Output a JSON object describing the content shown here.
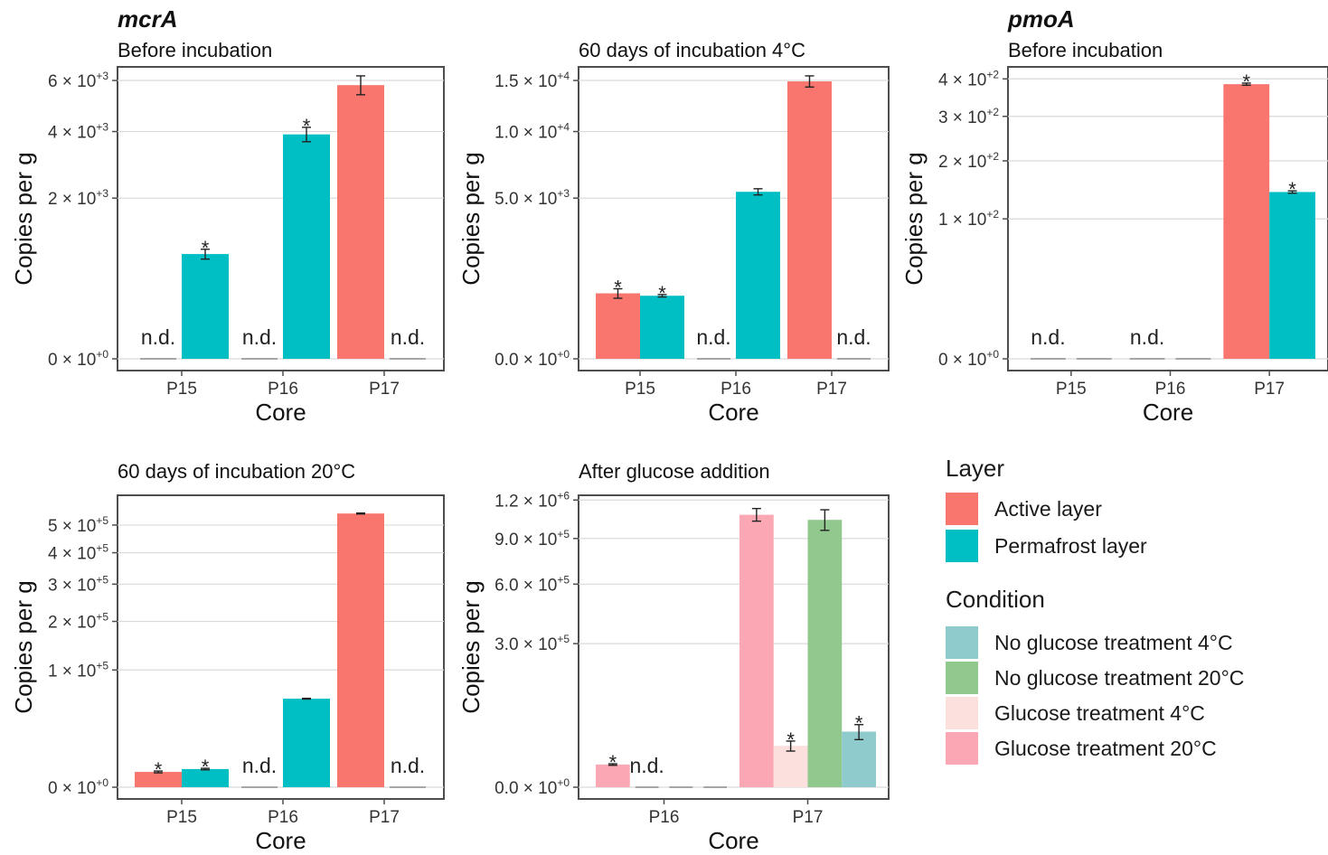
{
  "chart_data": [
    {
      "type": "bar",
      "gene": "mcrA",
      "title": "Before incubation",
      "xlabel": "Core",
      "ylabel": "Copies per g",
      "y_scale": "sqrt",
      "ylim": [
        0,
        0.0066
      ],
      "yticks": [
        {
          "value": 0,
          "mant": "0",
          "exp": "+0"
        },
        {
          "value": 0.002,
          "mant": "2",
          "exp": "+3"
        },
        {
          "value": 0.004,
          "mant": "4",
          "exp": "+3"
        },
        {
          "value": 0.006,
          "mant": "6",
          "exp": "+3"
        }
      ],
      "categories": [
        "P15",
        "P16",
        "P17"
      ],
      "bars": [
        {
          "core": "P15",
          "layer": "Active layer",
          "value": 0,
          "nd": true,
          "nd_label": "n.d."
        },
        {
          "core": "P15",
          "layer": "Permafrost layer",
          "value": 0.00085,
          "err": 8e-05,
          "star": "*"
        },
        {
          "core": "P16",
          "layer": "Active layer",
          "value": 0,
          "nd": true,
          "nd_label": "n.d."
        },
        {
          "core": "P16",
          "layer": "Permafrost layer",
          "value": 0.0039,
          "err": 0.00025,
          "star": "*"
        },
        {
          "core": "P17",
          "layer": "Active layer",
          "value": 0.0058,
          "err": 0.0004
        },
        {
          "core": "P17",
          "layer": "Permafrost layer",
          "value": 0,
          "nd": true,
          "nd_label": "n.d."
        }
      ]
    },
    {
      "type": "bar",
      "gene": "",
      "title": "60 days of incubation 4°C",
      "xlabel": "Core",
      "ylabel": "Copies per g",
      "y_scale": "sqrt",
      "ylim": [
        0,
        0.000165
      ],
      "yticks": [
        {
          "value": 0,
          "mant": "0.0",
          "exp": "+0"
        },
        {
          "value": 5e-05,
          "mant": "5.0",
          "exp": "+3"
        },
        {
          "value": 0.0001,
          "mant": "1.0",
          "exp": "+4"
        },
        {
          "value": 0.00015,
          "mant": "1.5",
          "exp": "+4"
        }
      ],
      "categories": [
        "P15",
        "P16",
        "P17"
      ],
      "bars": [
        {
          "core": "P15",
          "layer": "Active layer",
          "value": 8.3e-06,
          "err": 1.2e-06,
          "star": "*"
        },
        {
          "core": "P15",
          "layer": "Permafrost layer",
          "value": 7.7e-06,
          "err": 3e-07,
          "star": "*"
        },
        {
          "core": "P16",
          "layer": "Active layer",
          "value": 0,
          "nd": true,
          "nd_label": "n.d."
        },
        {
          "core": "P16",
          "layer": "Permafrost layer",
          "value": 5.4e-05,
          "err": 2e-06
        },
        {
          "core": "P17",
          "layer": "Active layer",
          "value": 0.000149,
          "err": 6e-06
        },
        {
          "core": "P17",
          "layer": "Permafrost layer",
          "value": 0,
          "nd": true,
          "nd_label": "n.d."
        }
      ]
    },
    {
      "type": "bar",
      "gene": "pmoA",
      "title": "Before incubation",
      "xlabel": "Core",
      "ylabel": "Copies per g",
      "y_scale": "sqrt",
      "ylim": [
        0,
        0.0435
      ],
      "yticks": [
        {
          "value": 0,
          "mant": "0",
          "exp": "+0"
        },
        {
          "value": 0.01,
          "mant": "1",
          "exp": "+2"
        },
        {
          "value": 0.02,
          "mant": "2",
          "exp": "+2"
        },
        {
          "value": 0.03,
          "mant": "3",
          "exp": "+2"
        },
        {
          "value": 0.04,
          "mant": "4",
          "exp": "+2"
        }
      ],
      "categories": [
        "P15",
        "P16",
        "P17"
      ],
      "bars": [
        {
          "core": "P15",
          "layer": "Active layer",
          "value": 0,
          "nd": true,
          "nd_label": "n.d."
        },
        {
          "core": "P15",
          "layer": "Permafrost layer",
          "value": 0
        },
        {
          "core": "P16",
          "layer": "Active layer",
          "value": 0,
          "nd": true,
          "nd_label": "n.d."
        },
        {
          "core": "P16",
          "layer": "Permafrost layer",
          "value": 0
        },
        {
          "core": "P17",
          "layer": "Active layer",
          "value": 0.0385,
          "err": 0.0003,
          "star": "*"
        },
        {
          "core": "P17",
          "layer": "Permafrost layer",
          "value": 0.0142,
          "err": 0.0002,
          "star": "*"
        }
      ]
    },
    {
      "type": "bar",
      "gene": "",
      "title": "60 days of incubation 20°C",
      "xlabel": "Core",
      "ylabel": "Copies per g",
      "y_scale": "sqrt",
      "ylim": [
        0,
        0.00062
      ],
      "yticks": [
        {
          "value": 0,
          "mant": "0",
          "exp": "+0"
        },
        {
          "value": 0.0001,
          "mant": "1",
          "exp": "+5"
        },
        {
          "value": 0.0002,
          "mant": "2",
          "exp": "+5"
        },
        {
          "value": 0.0003,
          "mant": "3",
          "exp": "+5"
        },
        {
          "value": 0.0004,
          "mant": "4",
          "exp": "+5"
        },
        {
          "value": 0.0005,
          "mant": "5",
          "exp": "+5"
        }
      ],
      "categories": [
        "P15",
        "P16",
        "P17"
      ],
      "bars": [
        {
          "core": "P15",
          "layer": "Active layer",
          "value": 1.7e-06,
          "err": 2e-07,
          "star": "*"
        },
        {
          "core": "P15",
          "layer": "Permafrost layer",
          "value": 2.4e-06,
          "err": 2e-07,
          "star": "*"
        },
        {
          "core": "P16",
          "layer": "Active layer",
          "value": 0,
          "nd": true,
          "nd_label": "n.d."
        },
        {
          "core": "P16",
          "layer": "Permafrost layer",
          "value": 5.7e-05,
          "err": 5e-07
        },
        {
          "core": "P17",
          "layer": "Active layer",
          "value": 0.000545,
          "err": 2e-06
        },
        {
          "core": "P17",
          "layer": "Permafrost layer",
          "value": 0,
          "nd": true,
          "nd_label": "n.d."
        }
      ]
    },
    {
      "type": "bar",
      "gene": "",
      "title": "After glucose addition",
      "xlabel": "Core",
      "ylabel": "Copies per g",
      "y_scale": "sqrt",
      "ylim": [
        0,
        0.00124
      ],
      "yticks": [
        {
          "value": 0,
          "mant": "0.0",
          "exp": "+0"
        },
        {
          "value": 0.0003,
          "mant": "3.0",
          "exp": "+5"
        },
        {
          "value": 0.0006,
          "mant": "6.0",
          "exp": "+5"
        },
        {
          "value": 0.0009,
          "mant": "9.0",
          "exp": "+5"
        },
        {
          "value": 0.0012,
          "mant": "1.2",
          "exp": "+6"
        }
      ],
      "categories": [
        "P16",
        "P17"
      ],
      "bars": [
        {
          "core": "P16",
          "condition": "Glucose treatment 20°C",
          "value": 7.5e-06,
          "err": 5e-07,
          "star": "*"
        },
        {
          "core": "P16",
          "condition": "Glucose treatment 4°C",
          "value": 0,
          "nd": true,
          "nd_label": "n.d."
        },
        {
          "core": "P16",
          "condition": "No glucose treatment 20°C",
          "value": 0
        },
        {
          "core": "P16",
          "condition": "No glucose treatment 4°C",
          "value": 0
        },
        {
          "core": "P17",
          "condition": "Glucose treatment 20°C",
          "value": 0.00108,
          "err": 5e-05
        },
        {
          "core": "P17",
          "condition": "Glucose treatment 4°C",
          "value": 2.5e-05,
          "err": 6e-06,
          "star": "*"
        },
        {
          "core": "P17",
          "condition": "No glucose treatment 20°C",
          "value": 0.00104,
          "err": 8e-05
        },
        {
          "core": "P17",
          "condition": "No glucose treatment 4°C",
          "value": 4.5e-05,
          "err": 1.2e-05,
          "star": "*"
        }
      ]
    }
  ],
  "legend": {
    "layer_title": "Layer",
    "layer_items": [
      {
        "label": "Active layer",
        "color": "#F8766D"
      },
      {
        "label": "Permafrost layer",
        "color": "#00BFC4"
      }
    ],
    "condition_title": "Condition",
    "condition_items": [
      {
        "label": "No glucose treatment 4°C",
        "color": "#8FCACD"
      },
      {
        "label": "No glucose treatment 20°C",
        "color": "#91C88D"
      },
      {
        "label": "Glucose treatment 4°C",
        "color": "#FCE0DE"
      },
      {
        "label": "Glucose treatment 20°C",
        "color": "#FBA8B4"
      }
    ]
  },
  "colors": {
    "Active layer": "#F8766D",
    "Permafrost layer": "#00BFC4",
    "No glucose treatment 4°C": "#8FCACD",
    "No glucose treatment 20°C": "#91C88D",
    "Glucose treatment 4°C": "#FCE0DE",
    "Glucose treatment 20°C": "#FBA8B4"
  }
}
